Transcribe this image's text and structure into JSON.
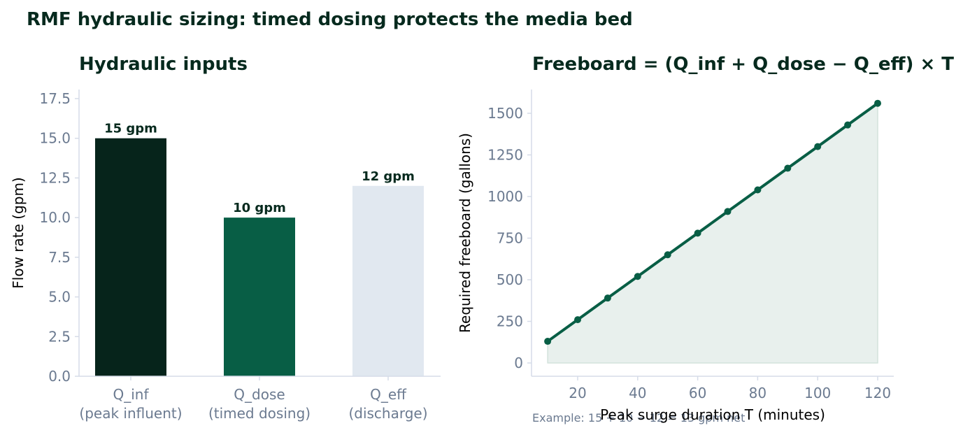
{
  "figure": {
    "title": "RMF hydraulic sizing: timed dosing protects the media bed",
    "footnote": "Example: 15 + 10 − 12 = 13 gpm net"
  },
  "chart_data": [
    {
      "type": "bar",
      "title": "Hydraulic inputs",
      "xlabel": "",
      "ylabel": "Flow rate (gpm)",
      "ylim": [
        0,
        17.5
      ],
      "yticks": [
        "0.0",
        "2.5",
        "5.0",
        "7.5",
        "10.0",
        "12.5",
        "15.0",
        "17.5"
      ],
      "categories": [
        [
          "Q_inf",
          "(peak influent)"
        ],
        [
          "Q_dose",
          "(timed dosing)"
        ],
        [
          "Q_eff",
          "(discharge)"
        ]
      ],
      "values": [
        15,
        10,
        12
      ],
      "data_labels": [
        "15 gpm",
        "10 gpm",
        "12 gpm"
      ],
      "colors": [
        "#06241b",
        "#085e45",
        "#e1e8f0"
      ],
      "grid": false
    },
    {
      "type": "line",
      "title": "Freeboard = (Q_inf + Q_dose − Q_eff) × T",
      "xlabel": "Peak surge duration T (minutes)",
      "ylabel": "Required freeboard (gallons)",
      "xlim": [
        7,
        126
      ],
      "ylim": [
        -40,
        1640
      ],
      "xticks": [
        "20",
        "40",
        "60",
        "80",
        "100",
        "120"
      ],
      "yticks": [
        "0",
        "250",
        "500",
        "750",
        "1000",
        "1250",
        "1500"
      ],
      "x": [
        10,
        20,
        30,
        40,
        50,
        60,
        70,
        80,
        90,
        100,
        110,
        120
      ],
      "y": [
        130,
        260,
        390,
        520,
        650,
        780,
        910,
        1040,
        1170,
        1300,
        1430,
        1560
      ],
      "line_color": "#085e45",
      "fill_color": "#e8f0ed",
      "area_fill": true,
      "grid": false
    }
  ]
}
